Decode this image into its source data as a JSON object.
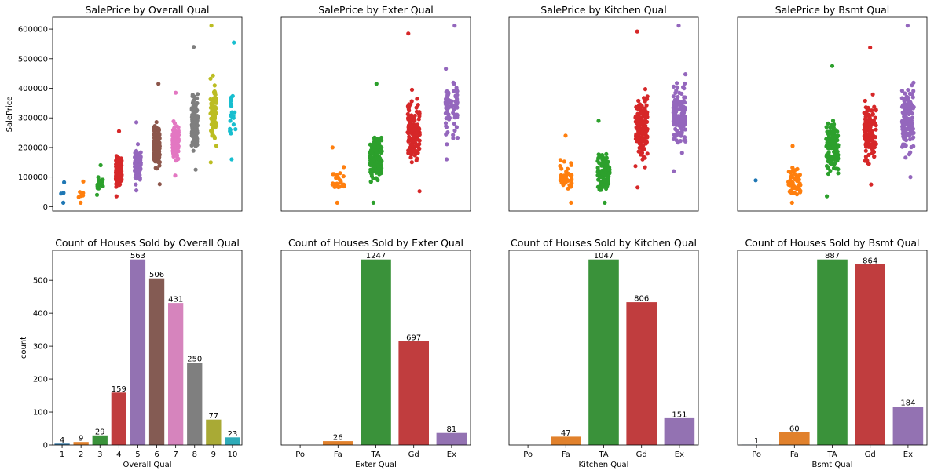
{
  "colors": [
    "#1f77b4",
    "#ff7f0e",
    "#2ca02c",
    "#d62728",
    "#9467bd",
    "#8c564b",
    "#e377c2",
    "#7f7f7f",
    "#bcbd22",
    "#17becf"
  ],
  "bar_colors": [
    "#3274a1",
    "#e1812c",
    "#3a923a",
    "#c03d3e",
    "#9372b2",
    "#845b53",
    "#d684bd",
    "#7f7f7f",
    "#a9aa35",
    "#2eabb8"
  ],
  "chart_data": [
    {
      "type": "scatter",
      "title": "SalePrice by Overall Qual",
      "ylabel": "SalePrice",
      "xlabel": "",
      "categories": [
        "1",
        "2",
        "3",
        "4",
        "5",
        "6",
        "7",
        "8",
        "9",
        "10"
      ],
      "ylim": [
        -15000,
        640000
      ],
      "yticks": [
        0,
        100000,
        200000,
        300000,
        400000,
        500000,
        600000
      ],
      "ytick_labels": [
        "0",
        "100000",
        "200000",
        "300000",
        "400000",
        "500000",
        "600000"
      ],
      "show_x_ticks": false,
      "ranges": [
        [
          13000,
          82000
        ],
        [
          13000,
          85000
        ],
        [
          40000,
          140000
        ],
        [
          35000,
          255000
        ],
        [
          55000,
          285000
        ],
        [
          76000,
          415000
        ],
        [
          105000,
          385000
        ],
        [
          125000,
          540000
        ],
        [
          150000,
          612000
        ],
        [
          160000,
          555000
        ]
      ],
      "counts": [
        4,
        9,
        29,
        159,
        563,
        506,
        431,
        250,
        77,
        23
      ]
    },
    {
      "type": "scatter",
      "title": "SalePrice by Exter Qual",
      "ylabel": "",
      "xlabel": "",
      "categories": [
        "Po",
        "Fa",
        "TA",
        "Gd",
        "Ex"
      ],
      "ylim": [
        -15000,
        640000
      ],
      "show_x_ticks": false,
      "ranges": [
        null,
        [
          13000,
          200000
        ],
        [
          13000,
          415000
        ],
        [
          52000,
          585000
        ],
        [
          160000,
          612000
        ]
      ],
      "counts": [
        0,
        26,
        1247,
        697,
        81
      ]
    },
    {
      "type": "scatter",
      "title": "SalePrice by Kitchen Qual",
      "ylabel": "",
      "xlabel": "",
      "categories": [
        "Po",
        "Fa",
        "TA",
        "Gd",
        "Ex"
      ],
      "ylim": [
        -15000,
        640000
      ],
      "show_x_ticks": false,
      "ranges": [
        null,
        [
          13000,
          240000
        ],
        [
          13000,
          290000
        ],
        [
          65000,
          592000
        ],
        [
          120000,
          612000
        ]
      ],
      "counts": [
        0,
        47,
        1047,
        806,
        151
      ]
    },
    {
      "type": "scatter",
      "title": "SalePrice by Bsmt Qual",
      "ylabel": "",
      "xlabel": "",
      "categories": [
        "Po",
        "Fa",
        "TA",
        "Gd",
        "Ex"
      ],
      "ylim": [
        -15000,
        640000
      ],
      "show_x_ticks": false,
      "ranges": [
        [
          89000,
          89000
        ],
        [
          13000,
          205000
        ],
        [
          35000,
          475000
        ],
        [
          75000,
          538000
        ],
        [
          100000,
          612000
        ]
      ],
      "counts": [
        1,
        60,
        887,
        864,
        184
      ]
    },
    {
      "type": "bar",
      "title": "Count of Houses Sold by Overall Qual",
      "ylabel": "count",
      "xlabel": "Overall Qual",
      "categories": [
        "1",
        "2",
        "3",
        "4",
        "5",
        "6",
        "7",
        "8",
        "9",
        "10"
      ],
      "values": [
        4,
        9,
        29,
        159,
        563,
        506,
        431,
        250,
        77,
        23
      ],
      "value_labels": [
        "4",
        "9",
        "29",
        "159",
        "563",
        "506",
        "431",
        "250",
        "77",
        "23"
      ],
      "ylim": [
        0,
        591
      ],
      "yticks": [
        0,
        100,
        200,
        300,
        400,
        500
      ],
      "ytick_labels": [
        "0",
        "100",
        "200",
        "300",
        "400",
        "500"
      ]
    },
    {
      "type": "bar",
      "title": "Count of Houses Sold by Exter Qual",
      "ylabel": "",
      "xlabel": "Exter Qual",
      "categories": [
        "Po",
        "Fa",
        "TA",
        "Gd",
        "Ex"
      ],
      "values": [
        0,
        26,
        1247,
        697,
        81
      ],
      "value_labels": [
        "",
        "26",
        "1247",
        "697",
        "81"
      ],
      "ylim": [
        0,
        1309
      ]
    },
    {
      "type": "bar",
      "title": "Count of Houses Sold by Kitchen Qual",
      "ylabel": "",
      "xlabel": "Kitchen Qual",
      "categories": [
        "Po",
        "Fa",
        "TA",
        "Gd",
        "Ex"
      ],
      "values": [
        0,
        47,
        1047,
        806,
        151
      ],
      "value_labels": [
        "",
        "47",
        "1047",
        "806",
        "151"
      ],
      "ylim": [
        0,
        1099
      ]
    },
    {
      "type": "bar",
      "title": "Count of Houses Sold by Bsmt Qual",
      "ylabel": "",
      "xlabel": "Bsmt Qual",
      "categories": [
        "Po",
        "Fa",
        "TA",
        "Gd",
        "Ex"
      ],
      "values": [
        1,
        60,
        887,
        864,
        184
      ],
      "value_labels": [
        "1",
        "60",
        "887",
        "864",
        "184"
      ],
      "ylim": [
        0,
        931
      ]
    }
  ]
}
